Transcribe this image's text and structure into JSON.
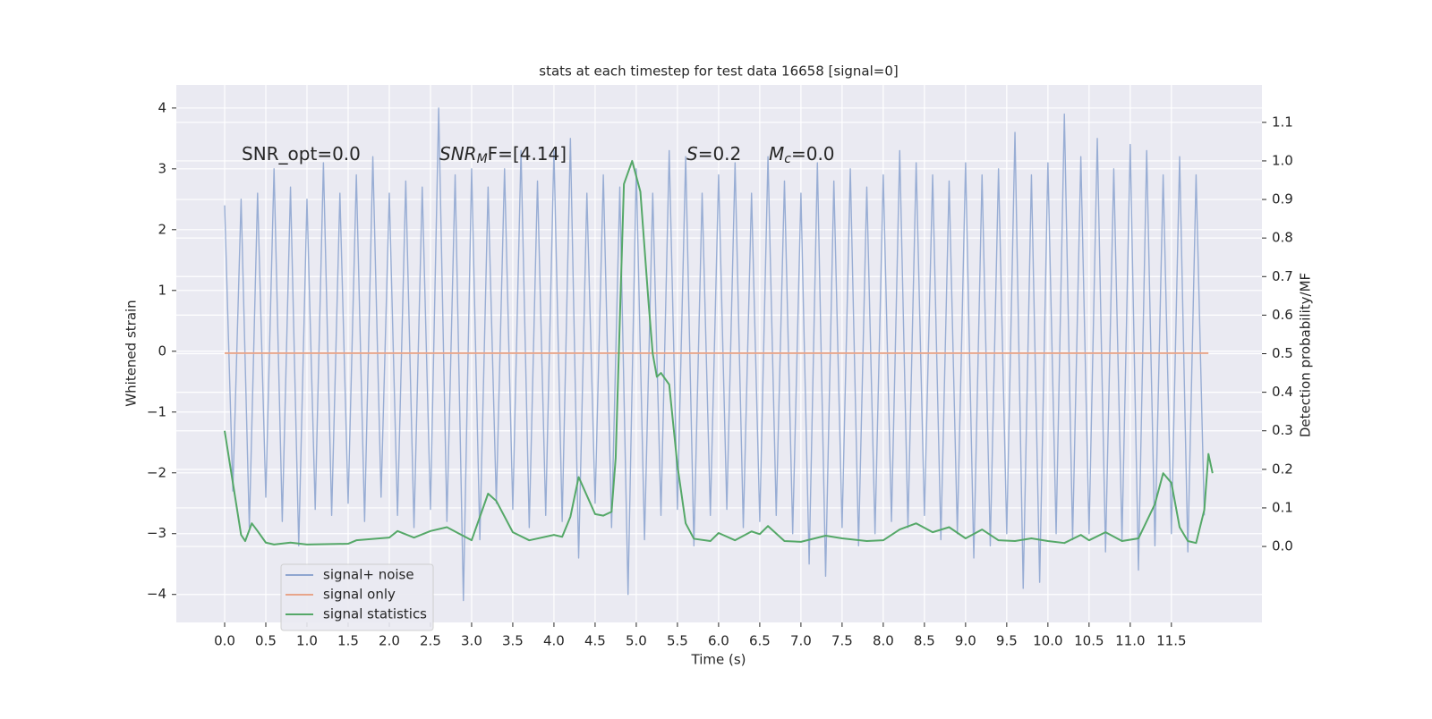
{
  "chart_data": {
    "type": "line",
    "title": "stats at each timestep for test data 16658 [signal=0]",
    "xlabel": "Time (s)",
    "ylabel": "Whitened strain",
    "y2label": "Detection probability/MF",
    "annotations": [
      {
        "text": "SNR_opt=0.0"
      },
      {
        "base": "SNR",
        "sub": "M",
        "rest": "F=[4.14]"
      },
      {
        "base": "S",
        "rest": "=0.2"
      },
      {
        "base": "M",
        "sub": "c",
        "rest": "=0.0"
      }
    ],
    "xlim": [
      -0.587,
      12.6
    ],
    "xticks": [
      {
        "value": 0,
        "label": "0.0"
      },
      0.5,
      {
        "value": 1,
        "label": "1.0"
      },
      1.5,
      {
        "value": 2,
        "label": "2.0"
      },
      2.5,
      {
        "value": 3,
        "label": "3.0"
      },
      3.5,
      {
        "value": 4,
        "label": "4.0"
      },
      4.5,
      {
        "value": 5,
        "label": "5.0"
      },
      5.5,
      {
        "value": 6,
        "label": "6.0"
      },
      6.5,
      {
        "value": 7,
        "label": "7.0"
      },
      7.5,
      {
        "value": 8,
        "label": "8.0"
      },
      8.5,
      {
        "value": 9,
        "label": "9.0"
      },
      9.5,
      {
        "value": 10,
        "label": "10.0"
      },
      10.5,
      {
        "value": 11,
        "label": "11.0"
      },
      11.5
    ],
    "ylim": [
      -4.46,
      4.38
    ],
    "yticks": [
      {
        "value": -4,
        "label": "−4"
      },
      {
        "value": -3,
        "label": "−3"
      },
      {
        "value": -2,
        "label": "−2"
      },
      {
        "value": -1,
        "label": "−1"
      },
      0,
      1,
      2,
      3,
      4
    ],
    "y2lim": [
      -0.197,
      1.197
    ],
    "y2ticks": [
      {
        "value": 0,
        "label": "0.0"
      },
      0.1,
      0.2,
      0.3,
      0.4,
      0.5,
      0.6,
      0.7,
      0.8,
      0.9,
      {
        "value": 1,
        "label": "1.0"
      },
      1.1
    ],
    "grid": true,
    "legend": "lower left",
    "series": [
      {
        "name": "signal+ noise",
        "color": "#8fa6d0",
        "x": [
          0,
          0.1,
          0.2,
          0.3,
          0.4,
          0.5,
          0.6,
          0.7,
          0.8,
          0.9,
          1,
          1.1,
          1.2,
          1.3,
          1.4,
          1.5,
          1.6,
          1.7,
          1.8,
          1.9,
          2,
          2.1,
          2.2,
          2.3,
          2.4,
          2.5,
          2.6,
          2.7,
          2.8,
          2.9,
          3,
          3.1,
          3.2,
          3.3,
          3.4,
          3.5,
          3.6,
          3.7,
          3.8,
          3.9,
          4,
          4.1,
          4.2,
          4.3,
          4.4,
          4.5,
          4.6,
          4.7,
          4.8,
          4.9,
          5,
          5.1,
          5.2,
          5.3,
          5.4,
          5.5,
          5.6,
          5.7,
          5.8,
          5.9,
          6,
          6.1,
          6.2,
          6.3,
          6.4,
          6.5,
          6.6,
          6.7,
          6.8,
          6.9,
          7,
          7.1,
          7.2,
          7.3,
          7.4,
          7.5,
          7.6,
          7.7,
          7.8,
          7.9,
          8,
          8.1,
          8.2,
          8.3,
          8.4,
          8.5,
          8.6,
          8.7,
          8.8,
          8.9,
          9,
          9.1,
          9.2,
          9.3,
          9.4,
          9.5,
          9.6,
          9.7,
          9.8,
          9.9,
          10,
          10.1,
          10.2,
          10.3,
          10.4,
          10.5,
          10.6,
          10.7,
          10.8,
          10.9,
          11,
          11.1,
          11.2,
          11.3,
          11.4,
          11.5,
          11.6,
          11.7,
          11.8,
          11.9
        ],
        "values": [
          2.4,
          -2.3,
          2.5,
          -2.9,
          2.6,
          -2.4,
          3.0,
          -2.8,
          2.7,
          -3.2,
          2.5,
          -2.6,
          3.1,
          -2.7,
          2.6,
          -2.5,
          2.9,
          -2.8,
          3.2,
          -2.4,
          2.6,
          -2.7,
          2.8,
          -2.9,
          2.7,
          -2.6,
          4.0,
          -2.8,
          2.9,
          -4.1,
          3.0,
          -3.1,
          2.7,
          -2.5,
          3.0,
          -2.6,
          3.3,
          -2.9,
          2.8,
          -2.7,
          3.3,
          -2.8,
          3.5,
          -3.4,
          2.6,
          -2.5,
          2.9,
          -2.9,
          2.7,
          -4.0,
          3.0,
          -3.1,
          2.6,
          -2.7,
          3.3,
          -2.6,
          3.2,
          -3.2,
          2.6,
          -2.7,
          2.9,
          -2.6,
          3.1,
          -2.9,
          2.6,
          -2.8,
          3.2,
          -2.7,
          2.8,
          -3.0,
          2.6,
          -3.5,
          3.1,
          -3.7,
          2.8,
          -2.9,
          3.0,
          -3.2,
          2.7,
          -3.0,
          2.9,
          -2.8,
          3.3,
          -2.9,
          3.1,
          -2.7,
          2.9,
          -3.1,
          2.8,
          -3.0,
          3.1,
          -3.4,
          2.9,
          -3.2,
          3.0,
          -3.0,
          3.6,
          -3.9,
          2.9,
          -3.8,
          3.1,
          -3.0,
          3.9,
          -3.1,
          3.2,
          -3.0,
          3.5,
          -3.3,
          3.0,
          -3.1,
          3.4,
          -3.6,
          3.3,
          -3.2,
          2.9,
          -3.0,
          3.2,
          -3.3,
          2.9,
          -2.7
        ]
      },
      {
        "name": "signal only",
        "color": "#e8a58a",
        "x": [
          0,
          11.95
        ],
        "values": [
          -0.03,
          -0.03
        ]
      },
      {
        "name": "signal statistics",
        "color": "#55a868",
        "axis": "y2",
        "x": [
          0,
          0.1,
          0.2,
          0.25,
          0.33,
          0.4,
          0.5,
          0.6,
          0.8,
          1,
          1.5,
          1.6,
          2,
          2.1,
          2.3,
          2.5,
          2.7,
          3,
          3.2,
          3.3,
          3.5,
          3.7,
          4,
          4.1,
          4.2,
          4.3,
          4.5,
          4.6,
          4.7,
          4.75,
          4.85,
          4.95,
          5.05,
          5.15,
          5.2,
          5.25,
          5.3,
          5.4,
          5.5,
          5.6,
          5.7,
          5.9,
          6,
          6.2,
          6.4,
          6.5,
          6.6,
          6.8,
          7,
          7.3,
          7.5,
          7.8,
          8,
          8.2,
          8.4,
          8.6,
          8.8,
          9,
          9.2,
          9.4,
          9.6,
          9.8,
          10,
          10.2,
          10.4,
          10.5,
          10.7,
          10.9,
          11.1,
          11.3,
          11.4,
          11.5,
          11.6,
          11.7,
          11.8,
          11.9,
          11.95,
          12
        ],
        "values": [
          0.3,
          0.165,
          0.03,
          0.014,
          0.06,
          0.04,
          0.01,
          0.005,
          0.01,
          0.005,
          0.007,
          0.016,
          0.023,
          0.04,
          0.023,
          0.04,
          0.05,
          0.016,
          0.137,
          0.118,
          0.037,
          0.016,
          0.03,
          0.025,
          0.077,
          0.18,
          0.084,
          0.08,
          0.09,
          0.23,
          0.94,
          1.0,
          0.92,
          0.63,
          0.5,
          0.44,
          0.45,
          0.42,
          0.21,
          0.06,
          0.02,
          0.014,
          0.035,
          0.016,
          0.039,
          0.032,
          0.053,
          0.014,
          0.012,
          0.028,
          0.021,
          0.014,
          0.016,
          0.044,
          0.06,
          0.037,
          0.05,
          0.021,
          0.044,
          0.016,
          0.014,
          0.021,
          0.014,
          0.009,
          0.03,
          0.016,
          0.037,
          0.014,
          0.021,
          0.11,
          0.19,
          0.165,
          0.05,
          0.014,
          0.009,
          0.095,
          0.24,
          0.19
        ]
      }
    ]
  }
}
